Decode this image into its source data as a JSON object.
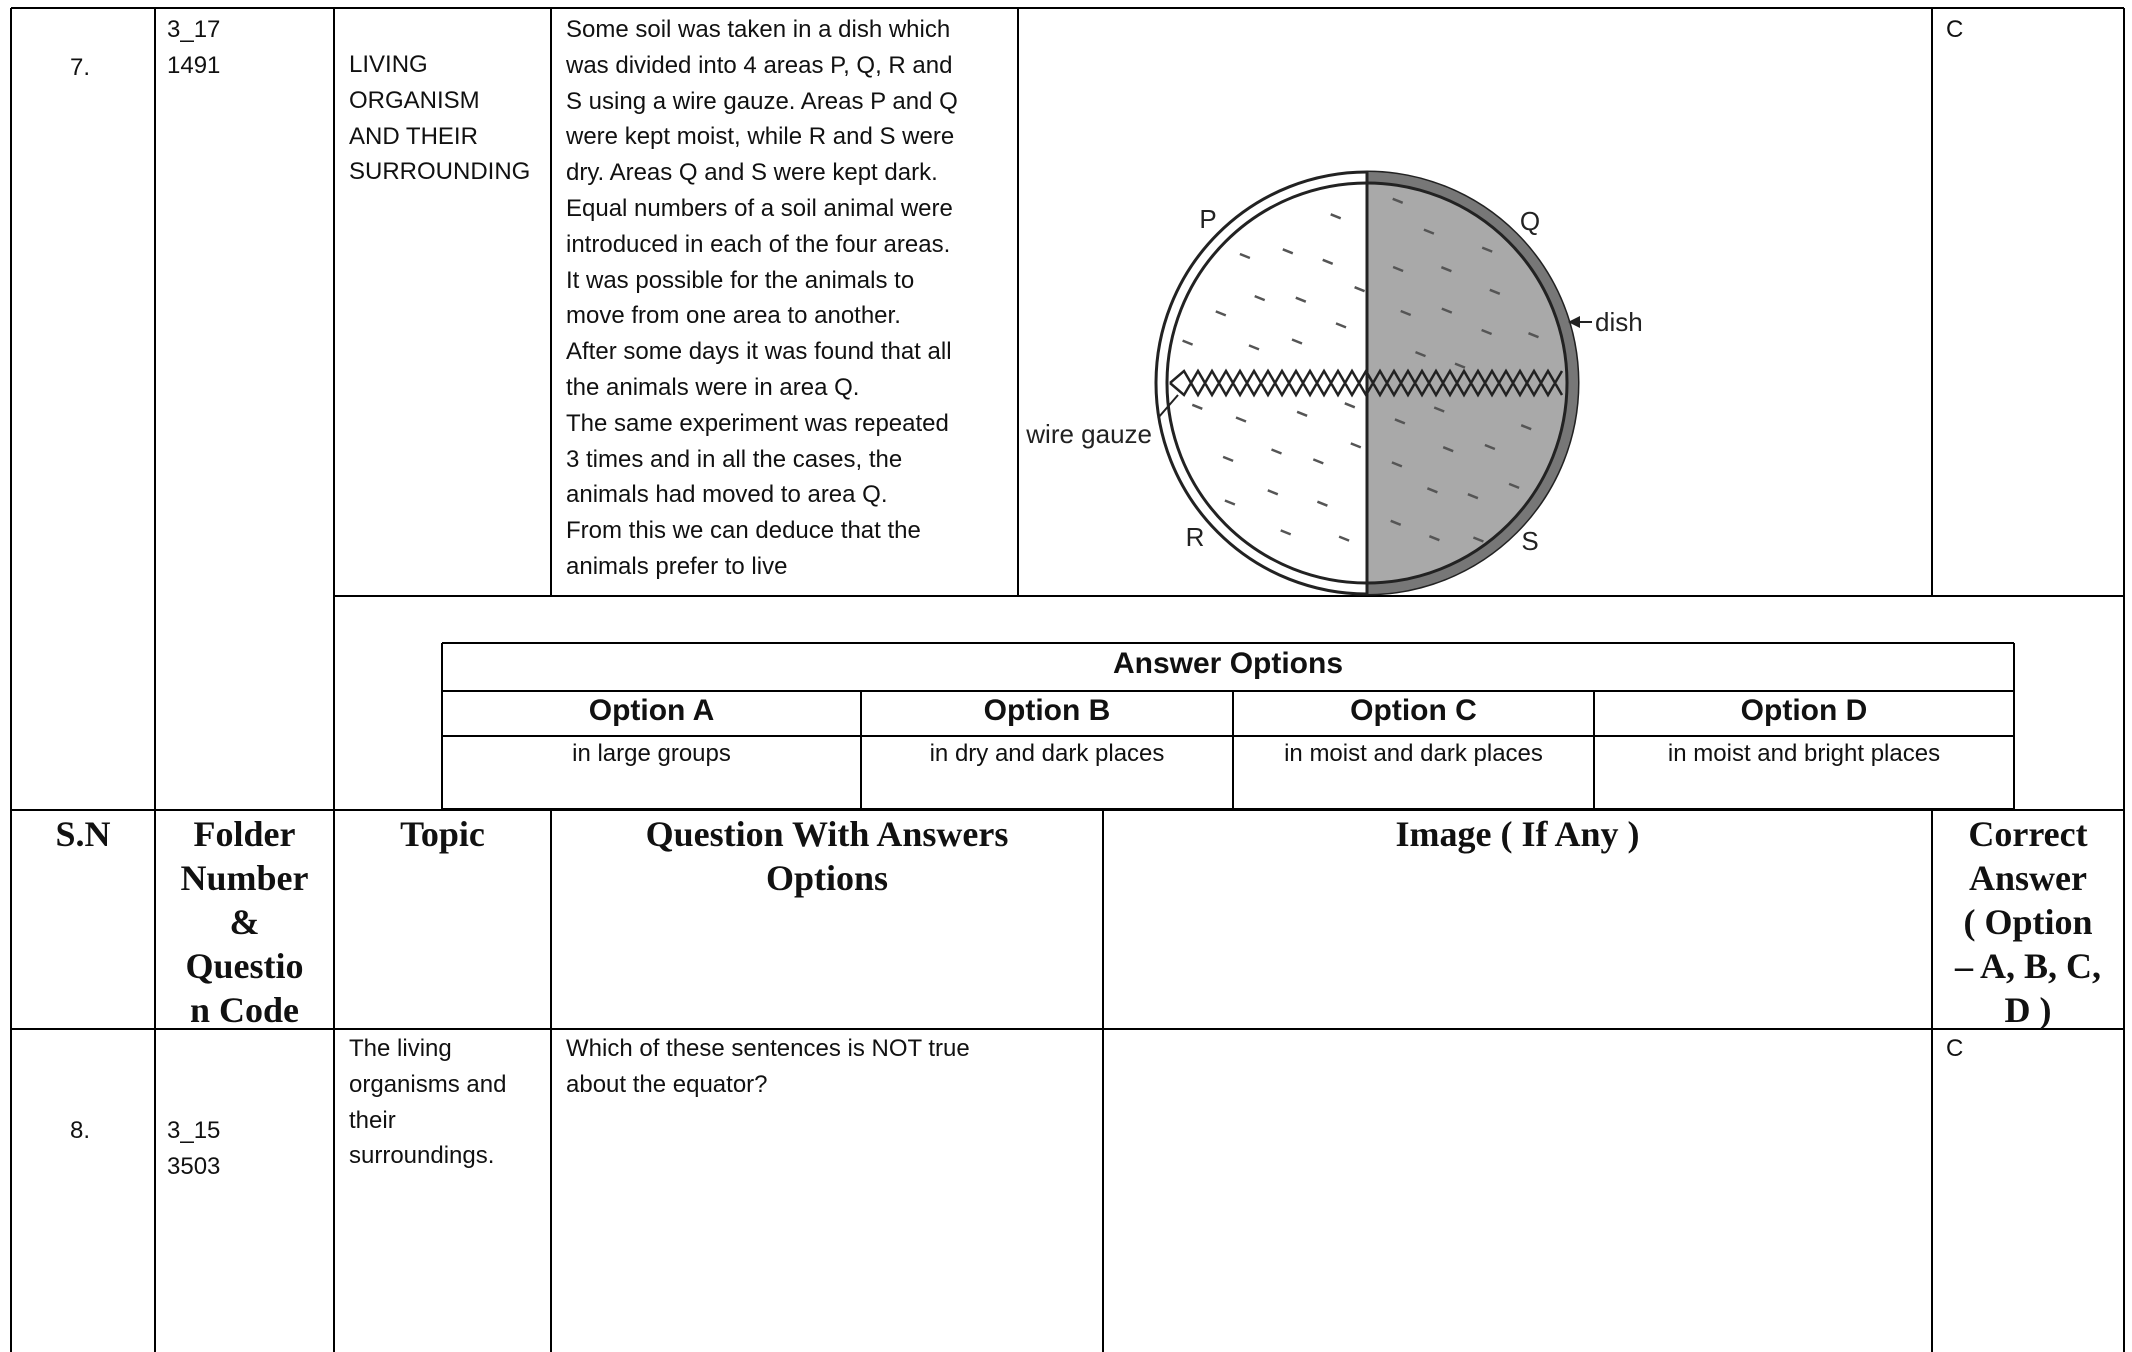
{
  "row7": {
    "sn": "7.",
    "code": [
      "3_17",
      "1491"
    ],
    "topic": [
      "LIVING",
      "ORGANISM",
      "AND THEIR",
      "SURROUNDING"
    ],
    "question": [
      "Some soil was taken in a dish which",
      "was divided into 4 areas P, Q, R and",
      "S using a wire gauze. Areas P and Q",
      "were kept moist, while R and S were",
      "dry. Areas Q and S were kept dark.",
      "Equal numbers of a soil animal were",
      "introduced in each of the four areas.",
      "It was possible for the animals to",
      "move from one area to another.",
      "After some days it was found that all",
      "the animals were in area Q.",
      "The same experiment was repeated",
      "3 times and in all the cases, the",
      "animals had moved to area Q.",
      "From this we can deduce that the",
      "animals prefer to live"
    ],
    "figure": {
      "p": "P",
      "q": "Q",
      "r": "R",
      "s": "S",
      "dish": "dish",
      "gauze": "wire gauze"
    },
    "answer": "C",
    "options": {
      "title": "Answer Options",
      "headers": [
        "Option A",
        "Option B",
        "Option C",
        "Option D"
      ],
      "values": [
        "in large groups",
        "in dry and dark places",
        "in moist and dark places",
        "in moist and bright places"
      ]
    }
  },
  "header": {
    "sn": [
      "S.N"
    ],
    "folder": [
      "Folder",
      "Number",
      "&",
      "Questio",
      "n Code"
    ],
    "topic": [
      "Topic"
    ],
    "question": [
      "Question With Answers",
      "Options"
    ],
    "image": [
      "Image ( If Any )"
    ],
    "correct": [
      "Correct",
      "Answer",
      "( Option",
      "– A, B, C,",
      "D )"
    ]
  },
  "row8": {
    "sn": "8.",
    "code": [
      "3_15",
      "3503"
    ],
    "topic": [
      "The living",
      "organisms and",
      "their",
      "surroundings."
    ],
    "question": [
      "Which of these sentences is NOT true",
      "about the equator?"
    ],
    "answer": "C"
  }
}
